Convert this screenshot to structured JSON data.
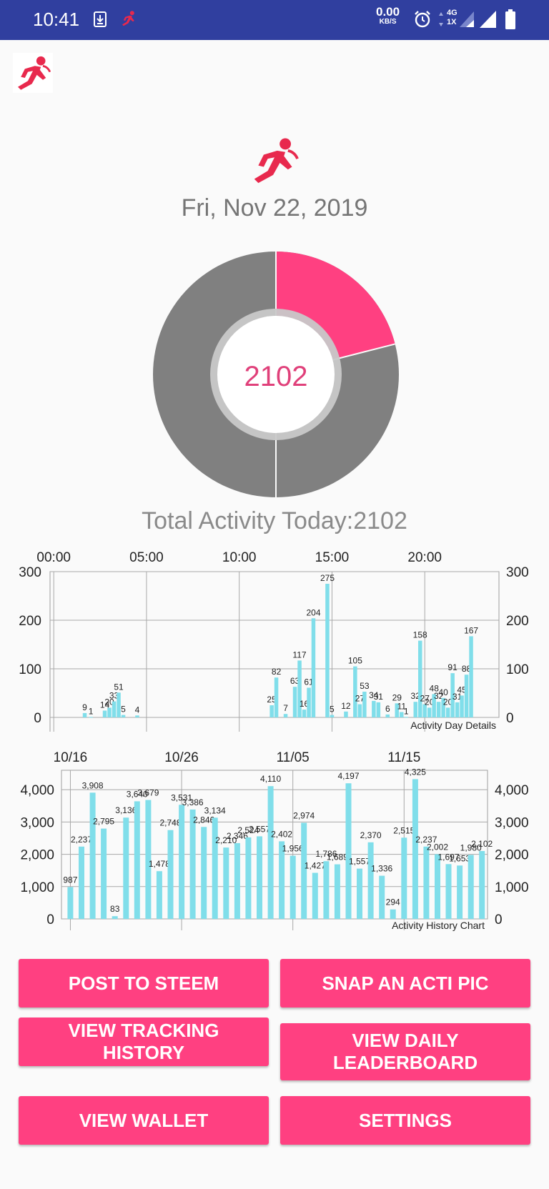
{
  "status_bar": {
    "time": "10:41",
    "net_speed": "0.00",
    "net_speed_unit": "KB/S",
    "network_type": "4G",
    "network_sub": "1X",
    "icons": [
      "download-icon",
      "runner-notification-icon",
      "alarm-icon",
      "signal-icon",
      "battery-icon"
    ]
  },
  "header": {
    "app_icon": "runner-logo-icon",
    "brand_color": "#e8294d"
  },
  "date": "Fri, Nov 22, 2019",
  "donut": {
    "value": "2102",
    "progress_fraction": 0.2102,
    "colors": {
      "progress": "#ff4081",
      "remaining": "#808080",
      "ring": "#b5b5b5"
    }
  },
  "total_label": "Total Activity Today:2102",
  "chart_data": [
    {
      "type": "bar",
      "title": "Activity Day Details",
      "xlabel": "",
      "ylabel": "",
      "x_ticks": [
        "00:00",
        "05:00",
        "10:00",
        "15:00",
        "20:00"
      ],
      "x_tick_hours": [
        0,
        5,
        10,
        15,
        20
      ],
      "xlim": [
        -0.2,
        24
      ],
      "ylim": [
        0,
        300
      ],
      "y_ticks": [
        0,
        100,
        200,
        300
      ],
      "grid": true,
      "color": "#80deea",
      "points": [
        {
          "x": 1.67,
          "y": 9,
          "label": "9"
        },
        {
          "x": 2.0,
          "y": 1,
          "label": "1"
        },
        {
          "x": 2.75,
          "y": 14,
          "label": "14"
        },
        {
          "x": 3.0,
          "y": 20,
          "label": "20"
        },
        {
          "x": 3.25,
          "y": 33,
          "label": "33"
        },
        {
          "x": 3.5,
          "y": 51,
          "label": "51"
        },
        {
          "x": 3.75,
          "y": 5,
          "label": "5"
        },
        {
          "x": 4.5,
          "y": 4,
          "label": "4"
        },
        {
          "x": 11.75,
          "y": 25,
          "label": "25"
        },
        {
          "x": 12.0,
          "y": 82,
          "label": "82"
        },
        {
          "x": 12.5,
          "y": 7,
          "label": "7"
        },
        {
          "x": 13.0,
          "y": 63,
          "label": "63"
        },
        {
          "x": 13.25,
          "y": 117,
          "label": "117"
        },
        {
          "x": 13.5,
          "y": 16,
          "label": "16"
        },
        {
          "x": 13.75,
          "y": 61,
          "label": "61"
        },
        {
          "x": 14.0,
          "y": 204,
          "label": "204"
        },
        {
          "x": 14.75,
          "y": 275,
          "label": "275"
        },
        {
          "x": 15.0,
          "y": 5,
          "label": "5"
        },
        {
          "x": 15.75,
          "y": 12,
          "label": "12"
        },
        {
          "x": 16.25,
          "y": 105,
          "label": "105"
        },
        {
          "x": 16.5,
          "y": 27,
          "label": "27"
        },
        {
          "x": 16.75,
          "y": 53,
          "label": "53"
        },
        {
          "x": 17.25,
          "y": 34,
          "label": "34"
        },
        {
          "x": 17.5,
          "y": 31,
          "label": "31"
        },
        {
          "x": 18.0,
          "y": 6,
          "label": "6"
        },
        {
          "x": 18.5,
          "y": 29,
          "label": "29"
        },
        {
          "x": 18.75,
          "y": 11,
          "label": "11"
        },
        {
          "x": 19.0,
          "y": 1,
          "label": "1"
        },
        {
          "x": 19.5,
          "y": 32,
          "label": "32"
        },
        {
          "x": 19.75,
          "y": 158,
          "label": "158"
        },
        {
          "x": 20.0,
          "y": 27,
          "label": "27"
        },
        {
          "x": 20.25,
          "y": 20,
          "label": "20"
        },
        {
          "x": 20.5,
          "y": 48,
          "label": "48"
        },
        {
          "x": 20.75,
          "y": 32,
          "label": "32"
        },
        {
          "x": 21.0,
          "y": 40,
          "label": "40"
        },
        {
          "x": 21.25,
          "y": 20,
          "label": "20"
        },
        {
          "x": 21.5,
          "y": 91,
          "label": "91"
        },
        {
          "x": 21.75,
          "y": 31,
          "label": "31"
        },
        {
          "x": 22.0,
          "y": 45,
          "label": "45"
        },
        {
          "x": 22.25,
          "y": 88,
          "label": "88"
        },
        {
          "x": 22.5,
          "y": 167,
          "label": "167"
        }
      ]
    },
    {
      "type": "bar",
      "title": "Activity History Chart",
      "xlabel": "",
      "ylabel": "",
      "x_ticks": [
        "10/16",
        "10/26",
        "11/05",
        "11/15"
      ],
      "x_tick_index": [
        0,
        10,
        20,
        30
      ],
      "xlim": [
        -0.8,
        37.5
      ],
      "ylim": [
        0,
        4600
      ],
      "y_ticks": [
        0,
        1000,
        2000,
        3000,
        4000
      ],
      "y_tick_labels": [
        "0",
        "1,000",
        "2,000",
        "3,000",
        "4,000"
      ],
      "grid": true,
      "color": "#80deea",
      "values": [
        987,
        2237,
        3908,
        2795,
        83,
        3136,
        3640,
        3679,
        1478,
        2748,
        3531,
        3386,
        2846,
        3134,
        2210,
        2346,
        2524,
        2557,
        4110,
        2402,
        1956,
        2974,
        1427,
        1786,
        1689,
        4197,
        1557,
        2370,
        1336,
        294,
        2515,
        4325,
        2237,
        2002,
        1697,
        1653,
        1980,
        2102
      ],
      "labels": [
        "987",
        "2,237",
        "3,908",
        "2,795",
        "83",
        "3,136",
        "3,640",
        "3,679",
        "1,478",
        "2,748",
        "3,531",
        "3,386",
        "2,846",
        "3,134",
        "2,210",
        "2,346",
        "2,524",
        "2,557",
        "4,110",
        "2,402",
        "1,956",
        "2,974",
        "1,427",
        "1,786",
        "1,689",
        "4,197",
        "1,557",
        "2,370",
        "1,336",
        "294",
        "2,515",
        "4,325",
        "2,237",
        "2,002",
        "1,697",
        "1,653",
        "1,980",
        "2,102"
      ]
    }
  ],
  "buttons": {
    "post": "POST TO STEEM",
    "snap": "SNAP AN ACTI PIC",
    "history": "VIEW TRACKING HISTORY",
    "leaderboard": "VIEW DAILY LEADERBOARD",
    "wallet": "VIEW WALLET",
    "settings": "SETTINGS"
  }
}
